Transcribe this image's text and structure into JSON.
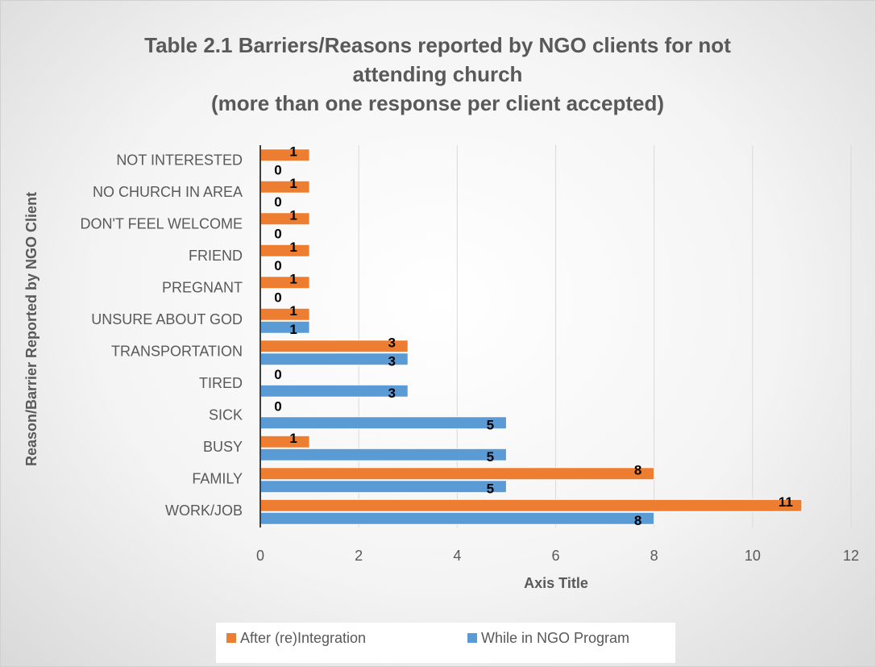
{
  "chart_data": {
    "type": "hbar",
    "title": "Table 2.1 Barriers/Reasons reported by NGO clients for not attending church",
    "subtitle": "(more than one response per client accepted)",
    "categories": [
      "NOT INTERESTED",
      "NO CHURCH IN AREA",
      "DON'T FEEL WELCOME",
      "FRIEND",
      "PREGNANT",
      "UNSURE ABOUT GOD",
      "TRANSPORTATION",
      "TIRED",
      "SICK",
      "BUSY",
      "FAMILY",
      "WORK/JOB"
    ],
    "series": [
      {
        "name": "After (re)Integration",
        "color": "#ed7d31",
        "values": [
          1,
          1,
          1,
          1,
          1,
          1,
          3,
          0,
          0,
          1,
          8,
          11
        ]
      },
      {
        "name": "While in NGO Program",
        "color": "#5b9bd5",
        "values": [
          0,
          0,
          0,
          0,
          0,
          1,
          3,
          3,
          5,
          5,
          5,
          8
        ]
      }
    ],
    "xlim": [
      0,
      12
    ],
    "xticks": [
      0,
      2,
      4,
      6,
      8,
      10,
      12
    ],
    "grid": true,
    "x_label": "Axis Title",
    "y_label": "Reason/Barrier Reported by NGO Client",
    "legend": "bottom"
  }
}
